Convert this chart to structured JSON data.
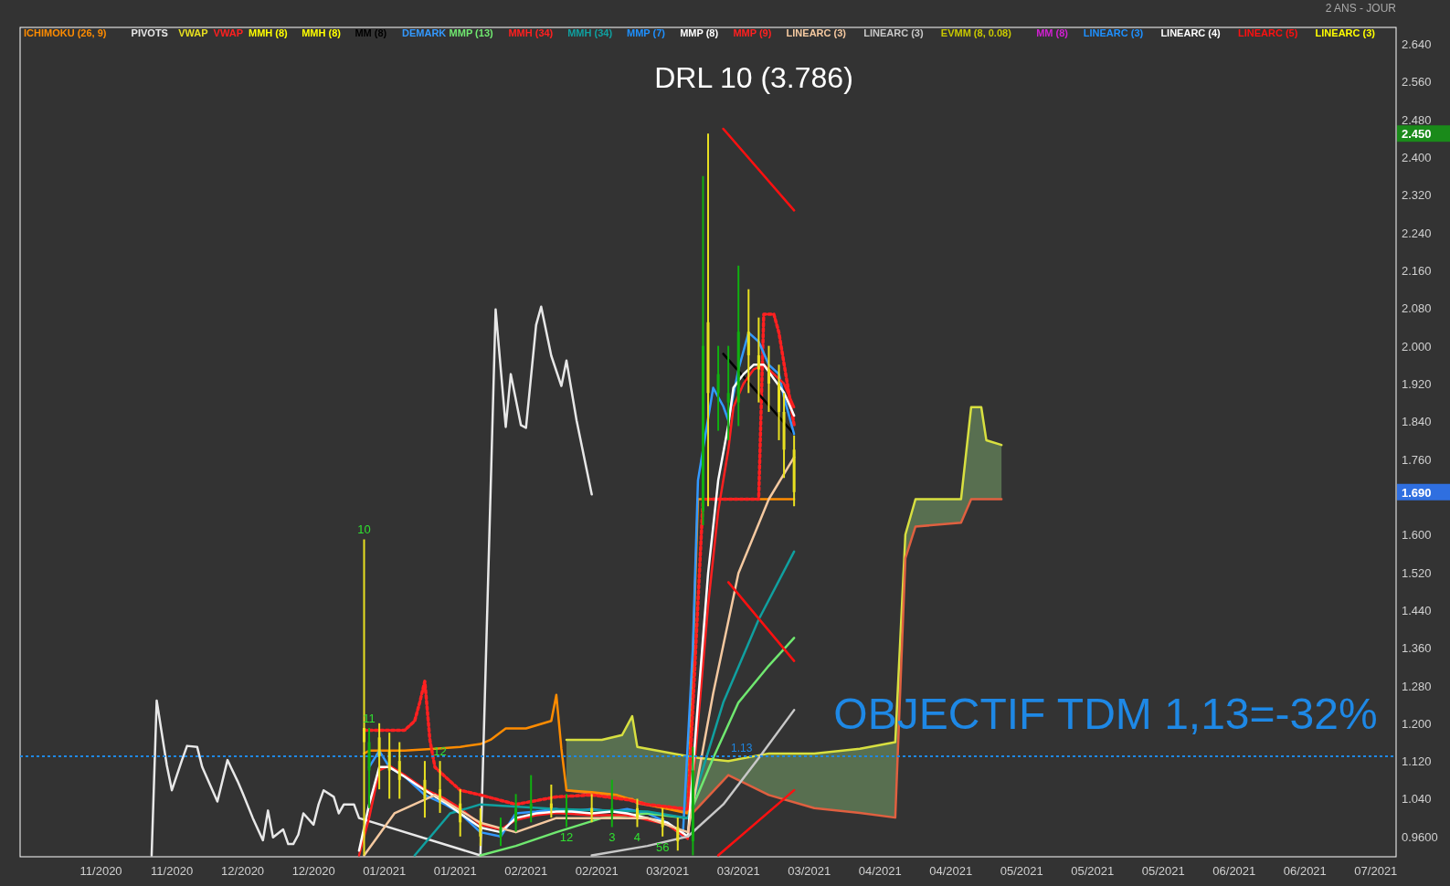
{
  "chart_data": {
    "type": "line",
    "title": "DRL 10 (3.786)",
    "xlim": [
      "2020-10-24",
      "2021-07-23"
    ],
    "ylim": [
      0.917,
      2.675
    ],
    "xticks": [
      {
        "value": "2020-11-09",
        "label": "11/2020"
      },
      {
        "value": "2020-11-23",
        "label": "11/2020"
      },
      {
        "value": "2020-12-07",
        "label": "12/2020"
      },
      {
        "value": "2020-12-21",
        "label": "12/2020"
      },
      {
        "value": "2021-01-04",
        "label": "01/2021"
      },
      {
        "value": "2021-01-18",
        "label": "01/2021"
      },
      {
        "value": "2021-02-01",
        "label": "02/2021"
      },
      {
        "value": "2021-02-15",
        "label": "02/2021"
      },
      {
        "value": "2021-03-01",
        "label": "03/2021"
      },
      {
        "value": "2021-03-15",
        "label": "03/2021"
      },
      {
        "value": "2021-03-29",
        "label": "03/2021"
      },
      {
        "value": "2021-04-12",
        "label": "04/2021"
      },
      {
        "value": "2021-04-26",
        "label": "04/2021"
      },
      {
        "value": "2021-05-10",
        "label": "05/2021"
      },
      {
        "value": "2021-05-24",
        "label": "05/2021"
      },
      {
        "value": "2021-06-07",
        "label": "05/2021"
      },
      {
        "value": "2021-06-21",
        "label": "06/2021"
      },
      {
        "value": "2021-07-05",
        "label": "06/2021"
      },
      {
        "value": "2021-07-19",
        "label": "07/2021"
      }
    ],
    "yticks": [
      {
        "value": 0.96,
        "label": "0.9600"
      },
      {
        "value": 1.04,
        "label": "1.040"
      },
      {
        "value": 1.12,
        "label": "1.120"
      },
      {
        "value": 1.2,
        "label": "1.200"
      },
      {
        "value": 1.28,
        "label": "1.280"
      },
      {
        "value": 1.36,
        "label": "1.360"
      },
      {
        "value": 1.44,
        "label": "1.440"
      },
      {
        "value": 1.52,
        "label": "1.520"
      },
      {
        "value": 1.6,
        "label": "1.600"
      },
      {
        "value": 1.76,
        "label": "1.760"
      },
      {
        "value": 1.84,
        "label": "1.840"
      },
      {
        "value": 1.92,
        "label": "1.920"
      },
      {
        "value": 2.0,
        "label": "2.000"
      },
      {
        "value": 2.08,
        "label": "2.080"
      },
      {
        "value": 2.16,
        "label": "2.160"
      },
      {
        "value": 2.24,
        "label": "2.240"
      },
      {
        "value": 2.32,
        "label": "2.320"
      },
      {
        "value": 2.4,
        "label": "2.400"
      },
      {
        "value": 2.48,
        "label": "2.480"
      },
      {
        "value": 2.56,
        "label": "2.560"
      },
      {
        "value": 2.64,
        "label": "2.640"
      }
    ],
    "legend": "top",
    "marker": "none",
    "series": [
      {
        "type": "line",
        "color": "#d8e040",
        "x": [
          "2021-02-09",
          "2021-02-16",
          "2021-02-20",
          "2021-02-22",
          "2021-02-23",
          "2021-03-06",
          "2021-03-13",
          "2021-03-21",
          "2021-03-30",
          "2021-04-08",
          "2021-04-15",
          "2021-04-17",
          "2021-04-19",
          "2021-04-28",
          "2021-04-30",
          "2021-05-02",
          "2021-05-03",
          "2021-05-06"
        ],
        "values": [
          1.165,
          1.165,
          1.175,
          1.215,
          1.15,
          1.128,
          1.12,
          1.136,
          1.136,
          1.146,
          1.16,
          1.6,
          1.675,
          1.675,
          1.87,
          1.87,
          1.8,
          1.79
        ],
        "upper": [
          1.165,
          1.165,
          1.175,
          1.215,
          1.15,
          1.128,
          1.12,
          1.136,
          1.136,
          1.146,
          1.16,
          1.6,
          1.675,
          1.675,
          1.87,
          1.87,
          1.8,
          1.79
        ],
        "lower": [
          1.058,
          1.048,
          1.04,
          1.04,
          1.03,
          1.01,
          1.09,
          1.048,
          1.02,
          1.01,
          1.0,
          1.55,
          1.617,
          1.625,
          1.675,
          1.675,
          1.675,
          1.675
        ]
      },
      {
        "type": "line",
        "color": "#e06040",
        "x": [
          "2021-02-09",
          "2021-02-16",
          "2021-02-20",
          "2021-02-22",
          "2021-02-23",
          "2021-03-06",
          "2021-03-13",
          "2021-03-21",
          "2021-03-30",
          "2021-04-08",
          "2021-04-15",
          "2021-04-17",
          "2021-04-19",
          "2021-04-28",
          "2021-04-30",
          "2021-05-02",
          "2021-05-03",
          "2021-05-06"
        ],
        "values": [
          1.058,
          1.048,
          1.04,
          1.04,
          1.03,
          1.01,
          1.09,
          1.048,
          1.02,
          1.01,
          1.0,
          1.55,
          1.617,
          1.625,
          1.675,
          1.675,
          1.675,
          1.675
        ]
      },
      {
        "name": "ICHIMOKU (26, 9)",
        "color": "#ff8c00",
        "x": [
          "2020-12-31",
          "2021-01-01",
          "2021-01-08",
          "2021-01-14",
          "2021-01-19",
          "2021-01-23",
          "2021-01-25",
          "2021-01-28",
          "2021-02-01",
          "2021-02-06",
          "2021-02-07",
          "2021-02-08",
          "2021-02-09",
          "2021-02-14",
          "2021-02-19",
          "2021-02-25",
          "2021-03-05",
          "2021-03-07",
          "2021-03-26"
        ],
        "values": [
          1.136,
          1.142,
          1.142,
          1.146,
          1.15,
          1.156,
          1.165,
          1.189,
          1.189,
          1.205,
          1.26,
          1.146,
          1.058,
          1.054,
          1.048,
          1.028,
          1.009,
          1.675,
          1.675
        ]
      },
      {
        "name": "PIVOTS",
        "color": "#e8e8e8",
        "x": [
          "2020-11-19",
          "2020-11-20",
          "2020-11-22",
          "2020-11-23",
          "2020-11-25",
          "2020-11-26",
          "2020-11-28",
          "2020-11-29",
          "2020-12-02",
          "2020-12-04",
          "2020-12-06",
          "2020-12-07",
          "2020-12-09",
          "2020-12-11",
          "2020-12-12",
          "2020-12-13",
          "2020-12-15",
          "2020-12-16",
          "2020-12-17",
          "2020-12-18",
          "2020-12-19",
          "2020-12-21",
          "2020-12-22",
          "2020-12-23",
          "2020-12-25",
          "2020-12-26",
          "2020-12-27",
          "2020-12-29",
          "2020-12-30",
          "2021-01-23",
          "2021-01-26",
          "2021-01-28",
          "2021-01-29",
          "2021-01-31",
          "2021-02-01",
          "2021-02-03",
          "2021-02-04",
          "2021-02-06",
          "2021-02-08",
          "2021-02-09",
          "2021-02-11",
          "2021-02-14"
        ],
        "values": [
          0.92,
          1.248,
          1.111,
          1.058,
          1.122,
          1.152,
          1.15,
          1.107,
          1.034,
          1.122,
          1.077,
          1.052,
          0.999,
          0.952,
          1.015,
          0.958,
          0.975,
          0.944,
          0.944,
          0.964,
          1.009,
          0.985,
          1.028,
          1.058,
          1.044,
          1.009,
          1.028,
          1.028,
          0.999,
          0.92,
          2.077,
          1.828,
          1.94,
          1.832,
          1.826,
          2.044,
          2.083,
          1.979,
          1.915,
          1.969,
          1.842,
          1.685
        ]
      },
      {
        "name": "VWAP",
        "type": "candlestick",
        "color": "#e8e020",
        "colors": [
          "#e8e020",
          "#10b010",
          "#e8e020",
          "#e8e020",
          "#e8e020",
          "#e8e020",
          "#e8e020",
          "#e8e020",
          "#e8e020",
          "#10b010",
          "#10b010",
          "#10b010",
          "#e8e020",
          "#10b010",
          "#e8e020",
          "#10b010",
          "#e8e020",
          "#e8e020",
          "#e8e020",
          "#10b010",
          "#10b010",
          "#e8e020",
          "#10b010",
          "#10b010",
          "#10b010",
          "#e8e020",
          "#e8e020",
          "#e8e020",
          "#e8e020",
          "#e8e020",
          "#e8e020"
        ],
        "x": [
          "2020-12-31",
          "2021-01-01",
          "2021-01-03",
          "2021-01-05",
          "2021-01-07",
          "2021-01-12",
          "2021-01-15",
          "2021-01-19",
          "2021-01-23",
          "2021-01-27",
          "2021-01-30",
          "2021-02-02",
          "2021-02-06",
          "2021-02-09",
          "2021-02-14",
          "2021-02-18",
          "2021-02-23",
          "2021-02-28",
          "2021-03-03",
          "2021-03-06",
          "2021-03-08",
          "2021-03-09",
          "2021-03-11",
          "2021-03-13",
          "2021-03-15",
          "2021-03-17",
          "2021-03-19",
          "2021-03-21",
          "2021-03-23",
          "2021-03-24",
          "2021-03-26"
        ],
        "ohlc": [
          [
            1.19,
            1.59,
            0.92,
            1.16
          ],
          [
            1.1,
            1.19,
            1.02,
            1.16
          ],
          [
            1.17,
            1.2,
            1.06,
            1.13
          ],
          [
            1.14,
            1.18,
            1.04,
            1.1
          ],
          [
            1.12,
            1.16,
            1.04,
            1.08
          ],
          [
            1.08,
            1.12,
            1.0,
            1.04
          ],
          [
            1.06,
            1.12,
            1.01,
            1.04
          ],
          [
            1.03,
            1.06,
            0.96,
            0.99
          ],
          [
            0.99,
            1.02,
            0.94,
            0.96
          ],
          [
            0.96,
            1.0,
            0.94,
            0.98
          ],
          [
            0.99,
            1.05,
            0.97,
            1.02
          ],
          [
            1.02,
            1.09,
            0.99,
            1.03
          ],
          [
            1.03,
            1.07,
            1.0,
            1.02
          ],
          [
            1.01,
            1.05,
            0.98,
            1.02
          ],
          [
            1.02,
            1.05,
            0.99,
            1.01
          ],
          [
            1.01,
            1.08,
            0.98,
            1.02
          ],
          [
            1.02,
            1.04,
            0.98,
            1.0
          ],
          [
            1.0,
            1.02,
            0.96,
            0.98
          ],
          [
            0.98,
            1.0,
            0.93,
            0.95
          ],
          [
            0.95,
            1.15,
            0.92,
            1.1
          ],
          [
            1.65,
            2.36,
            1.62,
            2.0
          ],
          [
            2.05,
            2.45,
            1.66,
            1.9
          ],
          [
            1.9,
            2.0,
            1.82,
            1.94
          ],
          [
            1.88,
            2.0,
            1.8,
            1.9
          ],
          [
            1.88,
            2.17,
            1.83,
            2.03
          ],
          [
            2.03,
            2.12,
            1.9,
            1.98
          ],
          [
            1.98,
            2.06,
            1.88,
            1.95
          ],
          [
            1.95,
            2.0,
            1.86,
            1.92
          ],
          [
            1.92,
            1.96,
            1.8,
            1.86
          ],
          [
            1.86,
            1.9,
            1.72,
            1.78
          ],
          [
            1.78,
            1.81,
            1.66,
            1.69
          ]
        ]
      },
      {
        "name": "VWAP",
        "color": "#ff2020",
        "line_style": "dotted",
        "x": [
          "2020-12-31",
          "2021-01-08",
          "2021-01-10",
          "2021-01-11",
          "2021-01-12",
          "2021-01-13",
          "2021-01-14",
          "2021-01-16",
          "2021-01-19",
          "2021-01-23",
          "2021-01-30",
          "2021-02-07",
          "2021-02-14",
          "2021-02-21",
          "2021-02-25",
          "2021-03-05",
          "2021-03-08",
          "2021-03-19",
          "2021-03-20",
          "2021-03-22",
          "2021-03-23",
          "2021-03-26"
        ],
        "values": [
          1.185,
          1.185,
          1.205,
          1.244,
          1.289,
          1.165,
          1.107,
          1.087,
          1.058,
          1.048,
          1.028,
          1.044,
          1.048,
          1.038,
          1.028,
          1.018,
          1.675,
          1.675,
          2.067,
          2.067,
          2.028,
          1.832
        ]
      },
      {
        "name": "MMH (8)",
        "color": "#ffff00"
      },
      {
        "name": "MMH (8)",
        "color": "#ffff00"
      },
      {
        "name": "MM (8)",
        "color": "#000000",
        "x": [
          "2021-03-12",
          "2021-03-26"
        ],
        "values": [
          1.983,
          1.813
        ]
      },
      {
        "name": "DEMARK",
        "color": "#3399ff",
        "x": [
          "2021-01-01",
          "2021-01-03",
          "2021-01-05",
          "2021-01-08",
          "2021-01-12",
          "2021-01-16",
          "2021-01-19",
          "2021-01-23",
          "2021-01-27",
          "2021-01-30",
          "2021-02-03",
          "2021-02-07",
          "2021-02-10",
          "2021-02-14",
          "2021-02-18",
          "2021-02-21",
          "2021-02-25",
          "2021-03-01",
          "2021-03-04",
          "2021-03-06",
          "2021-03-07",
          "2021-03-10",
          "2021-03-12",
          "2021-03-13",
          "2021-03-15",
          "2021-03-17",
          "2021-03-19",
          "2021-03-21",
          "2021-03-23",
          "2021-03-24",
          "2021-03-26"
        ],
        "values": [
          1.107,
          1.142,
          1.107,
          1.087,
          1.048,
          1.028,
          1.009,
          0.969,
          0.96,
          1.009,
          1.013,
          1.018,
          1.013,
          1.018,
          1.013,
          1.018,
          1.009,
          0.989,
          0.96,
          1.362,
          1.715,
          1.911,
          1.872,
          1.842,
          1.95,
          2.028,
          2.009,
          1.96,
          1.94,
          1.891,
          1.813
        ]
      },
      {
        "name": "MMP (13)",
        "color": "#70e870",
        "x": [
          "2021-01-23",
          "2021-01-30",
          "2021-02-07",
          "2021-02-16",
          "2021-02-25",
          "2021-03-05",
          "2021-03-10",
          "2021-03-15",
          "2021-03-21",
          "2021-03-26"
        ],
        "values": [
          0.92,
          0.94,
          0.969,
          0.999,
          1.009,
          0.999,
          1.126,
          1.244,
          1.322,
          1.381
        ]
      },
      {
        "name": "MMH (34)",
        "color": "#ff2020",
        "x": [
          "2020-12-30",
          "2021-01-01",
          "2021-01-03",
          "2021-01-05",
          "2021-01-08",
          "2021-01-12",
          "2021-01-16",
          "2021-01-19",
          "2021-01-23",
          "2021-01-27",
          "2021-01-30",
          "2021-02-03",
          "2021-02-07",
          "2021-02-14",
          "2021-02-21",
          "2021-03-01",
          "2021-03-05",
          "2021-03-07",
          "2021-03-09",
          "2021-03-11",
          "2021-03-13",
          "2021-03-14",
          "2021-03-16",
          "2021-03-18",
          "2021-03-20",
          "2021-03-22",
          "2021-03-24",
          "2021-03-26"
        ],
        "values": [
          0.92,
          1.0,
          1.1,
          1.11,
          1.09,
          1.06,
          1.04,
          1.02,
          0.985,
          0.975,
          0.995,
          1.005,
          1.01,
          1.005,
          1.005,
          0.985,
          0.955,
          1.2,
          1.45,
          1.65,
          1.78,
          1.87,
          1.92,
          1.95,
          1.96,
          1.94,
          1.92,
          1.87
        ]
      },
      {
        "name": "MMH (34)",
        "color": "#10a0a0",
        "x": [
          "2021-01-10",
          "2021-01-17",
          "2021-01-23",
          "2021-02-07",
          "2021-02-25",
          "2021-03-05",
          "2021-03-12",
          "2021-03-19",
          "2021-03-26"
        ],
        "values": [
          0.92,
          1.009,
          1.028,
          1.018,
          1.013,
          0.999,
          1.244,
          1.42,
          1.564
        ]
      },
      {
        "name": "MMP (7)",
        "color": "#1e90ff"
      },
      {
        "name": "MMP (8)",
        "color": "#ffffff",
        "x": [
          "2020-12-30",
          "2021-01-01",
          "2021-01-03",
          "2021-01-05",
          "2021-01-08",
          "2021-01-12",
          "2021-01-16",
          "2021-01-19",
          "2021-01-23",
          "2021-01-27",
          "2021-01-30",
          "2021-02-03",
          "2021-02-07",
          "2021-02-10",
          "2021-02-14",
          "2021-02-18",
          "2021-02-21",
          "2021-02-25",
          "2021-03-01",
          "2021-03-05",
          "2021-03-07",
          "2021-03-09",
          "2021-03-11",
          "2021-03-13",
          "2021-03-14",
          "2021-03-16",
          "2021-03-18",
          "2021-03-20",
          "2021-03-22",
          "2021-03-24",
          "2021-03-26"
        ],
        "values": [
          0.93,
          1.028,
          1.107,
          1.107,
          1.087,
          1.058,
          1.032,
          1.009,
          0.979,
          0.969,
          0.999,
          1.009,
          1.013,
          1.013,
          1.009,
          1.013,
          1.009,
          0.999,
          0.989,
          0.96,
          1.244,
          1.518,
          1.715,
          1.832,
          1.911,
          1.94,
          1.96,
          1.96,
          1.93,
          1.901,
          1.852
        ]
      },
      {
        "name": "MMP (9)",
        "color": "#ff2020"
      },
      {
        "name": "LINEARC (3)",
        "color": "#f5c9a0",
        "x": [
          "2020-12-31",
          "2021-01-06",
          "2021-01-14",
          "2021-01-23",
          "2021-01-30",
          "2021-02-07",
          "2021-02-25",
          "2021-03-05",
          "2021-03-10",
          "2021-03-15",
          "2021-03-21",
          "2021-03-26"
        ],
        "values": [
          0.92,
          1.009,
          1.048,
          0.989,
          0.969,
          0.999,
          0.999,
          0.969,
          1.263,
          1.518,
          1.675,
          1.764
        ]
      },
      {
        "name": "LINEARC (3)",
        "color": "#c8c8c8",
        "x": [
          "2021-02-14",
          "2021-02-25",
          "2021-03-05",
          "2021-03-12",
          "2021-03-19",
          "2021-03-26"
        ],
        "values": [
          0.92,
          0.94,
          0.96,
          1.028,
          1.126,
          1.228
        ]
      },
      {
        "name": "EVMM (8, 0.08)",
        "color": "#c8c800"
      },
      {
        "name": "MM (8)",
        "color": "#d020d0"
      },
      {
        "name": "LINEARC (3)",
        "color": "#1e90ff"
      },
      {
        "name": "LINEARC (4)",
        "color": "#ffffff"
      },
      {
        "name": "LINEARC (5)",
        "color": "#ff1010",
        "x": [
          "2021-03-12",
          "2021-03-26",
          null,
          "2021-03-13",
          "2021-03-26",
          null,
          "2021-03-11",
          "2021-03-26"
        ],
        "values": [
          2.46,
          2.287,
          null,
          1.499,
          1.332,
          null,
          0.92,
          1.058
        ]
      },
      {
        "name": "LINEARC (3)",
        "color": "#ffff00"
      }
    ],
    "ref_lines": [
      {
        "axis": "y",
        "value": 1.13,
        "label": "1.13",
        "color": "#1e88e5",
        "line_style": "dotted"
      }
    ],
    "annotations": [
      "2 ANS - JOUR",
      "OBJECTIF TDM 1,13=-32%",
      "2.450",
      "1.690",
      {
        "text": "10",
        "x": "2020-12-31",
        "y": 1.59
      },
      {
        "text": "11",
        "x": "2021-01-01",
        "y": 1.19
      },
      {
        "text": "12",
        "x": "2021-01-15",
        "y": 1.12
      },
      {
        "text": "12",
        "x": "2021-02-09",
        "y": 0.98
      },
      {
        "text": "3",
        "x": "2021-02-18",
        "y": 0.98
      },
      {
        "text": "4",
        "x": "2021-02-23",
        "y": 0.98
      },
      {
        "text": "56",
        "x": "2021-02-28",
        "y": 0.96
      }
    ]
  }
}
